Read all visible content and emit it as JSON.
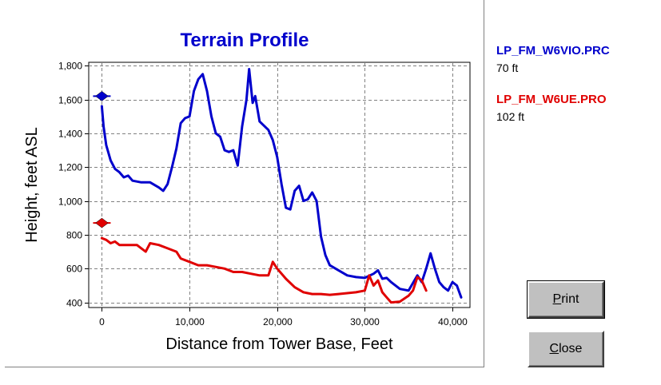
{
  "chart_data": {
    "type": "line",
    "title": "Terrain Profile",
    "xlabel": "Distance from Tower Base, Feet",
    "ylabel": "Height, feet ASL",
    "xlim": [
      -1500,
      42000
    ],
    "ylim": [
      370,
      1820
    ],
    "xticks": [
      0,
      10000,
      20000,
      30000,
      40000
    ],
    "xtick_labels": [
      "0",
      "10,000",
      "20,000",
      "30,000",
      "40,000"
    ],
    "yticks": [
      400,
      600,
      800,
      1000,
      1200,
      1400,
      1600,
      1800
    ],
    "ytick_labels": [
      "400",
      "600",
      "800",
      "1,000",
      "1,200",
      "1,400",
      "1,600",
      "1,800"
    ],
    "grid": true,
    "series": [
      {
        "name": "LP_FM_W6VIO.PRC",
        "color": "#0000cc",
        "marker_y": 1620,
        "points": [
          [
            0,
            1560
          ],
          [
            200,
            1440
          ],
          [
            500,
            1330
          ],
          [
            1000,
            1240
          ],
          [
            1500,
            1190
          ],
          [
            2000,
            1170
          ],
          [
            2500,
            1140
          ],
          [
            3000,
            1150
          ],
          [
            3500,
            1120
          ],
          [
            4500,
            1110
          ],
          [
            5500,
            1110
          ],
          [
            6500,
            1080
          ],
          [
            7000,
            1060
          ],
          [
            7500,
            1100
          ],
          [
            8000,
            1200
          ],
          [
            8500,
            1310
          ],
          [
            9000,
            1460
          ],
          [
            9500,
            1490
          ],
          [
            10000,
            1500
          ],
          [
            10500,
            1650
          ],
          [
            11000,
            1720
          ],
          [
            11500,
            1750
          ],
          [
            12000,
            1650
          ],
          [
            12500,
            1500
          ],
          [
            13000,
            1400
          ],
          [
            13500,
            1380
          ],
          [
            14000,
            1300
          ],
          [
            14500,
            1290
          ],
          [
            15000,
            1300
          ],
          [
            15500,
            1210
          ],
          [
            16000,
            1440
          ],
          [
            16500,
            1600
          ],
          [
            16800,
            1780
          ],
          [
            17200,
            1580
          ],
          [
            17500,
            1620
          ],
          [
            18000,
            1470
          ],
          [
            19000,
            1420
          ],
          [
            19500,
            1360
          ],
          [
            20000,
            1260
          ],
          [
            20500,
            1100
          ],
          [
            21000,
            960
          ],
          [
            21500,
            950
          ],
          [
            22000,
            1060
          ],
          [
            22500,
            1090
          ],
          [
            23000,
            1000
          ],
          [
            23500,
            1010
          ],
          [
            24000,
            1050
          ],
          [
            24500,
            1000
          ],
          [
            25000,
            790
          ],
          [
            25500,
            680
          ],
          [
            26000,
            620
          ],
          [
            27000,
            590
          ],
          [
            28000,
            560
          ],
          [
            29000,
            550
          ],
          [
            30000,
            545
          ],
          [
            31000,
            570
          ],
          [
            31500,
            590
          ],
          [
            32000,
            540
          ],
          [
            32500,
            545
          ],
          [
            33000,
            520
          ],
          [
            34000,
            480
          ],
          [
            35000,
            470
          ],
          [
            36000,
            560
          ],
          [
            36500,
            520
          ],
          [
            37000,
            600
          ],
          [
            37500,
            690
          ],
          [
            38000,
            600
          ],
          [
            38500,
            520
          ],
          [
            39000,
            490
          ],
          [
            39500,
            470
          ],
          [
            40000,
            520
          ],
          [
            40500,
            500
          ],
          [
            41000,
            430
          ]
        ]
      },
      {
        "name": "LP_FM_W6UE.PRO",
        "color": "#e00000",
        "marker_y": 870,
        "points": [
          [
            0,
            780
          ],
          [
            500,
            770
          ],
          [
            1000,
            750
          ],
          [
            1500,
            760
          ],
          [
            2000,
            740
          ],
          [
            3000,
            740
          ],
          [
            4000,
            740
          ],
          [
            4500,
            720
          ],
          [
            5000,
            700
          ],
          [
            5500,
            750
          ],
          [
            6500,
            740
          ],
          [
            7500,
            720
          ],
          [
            8500,
            700
          ],
          [
            9000,
            660
          ],
          [
            10000,
            640
          ],
          [
            11000,
            620
          ],
          [
            12000,
            620
          ],
          [
            13000,
            610
          ],
          [
            14000,
            600
          ],
          [
            15000,
            580
          ],
          [
            16000,
            580
          ],
          [
            17000,
            570
          ],
          [
            18000,
            560
          ],
          [
            19000,
            560
          ],
          [
            19500,
            640
          ],
          [
            20000,
            600
          ],
          [
            21000,
            540
          ],
          [
            22000,
            490
          ],
          [
            23000,
            460
          ],
          [
            24000,
            450
          ],
          [
            25000,
            450
          ],
          [
            26000,
            445
          ],
          [
            27000,
            450
          ],
          [
            28000,
            455
          ],
          [
            29000,
            460
          ],
          [
            30000,
            470
          ],
          [
            30500,
            560
          ],
          [
            31000,
            500
          ],
          [
            31500,
            530
          ],
          [
            32000,
            460
          ],
          [
            32500,
            430
          ],
          [
            33000,
            400
          ],
          [
            34000,
            405
          ],
          [
            35000,
            440
          ],
          [
            35500,
            470
          ],
          [
            36000,
            550
          ],
          [
            36500,
            530
          ],
          [
            37000,
            470
          ]
        ]
      }
    ]
  },
  "legend": [
    {
      "name": "LP_FM_W6VIO.PRC",
      "height": "70 ft",
      "color": "#0000cc"
    },
    {
      "name": "LP_FM_W6UE.PRO",
      "height": "102 ft",
      "color": "#e00000"
    }
  ],
  "buttons": {
    "print_pre": "",
    "print_key": "P",
    "print_post": "rint",
    "close_pre": "",
    "close_key": "C",
    "close_post": "lose"
  }
}
